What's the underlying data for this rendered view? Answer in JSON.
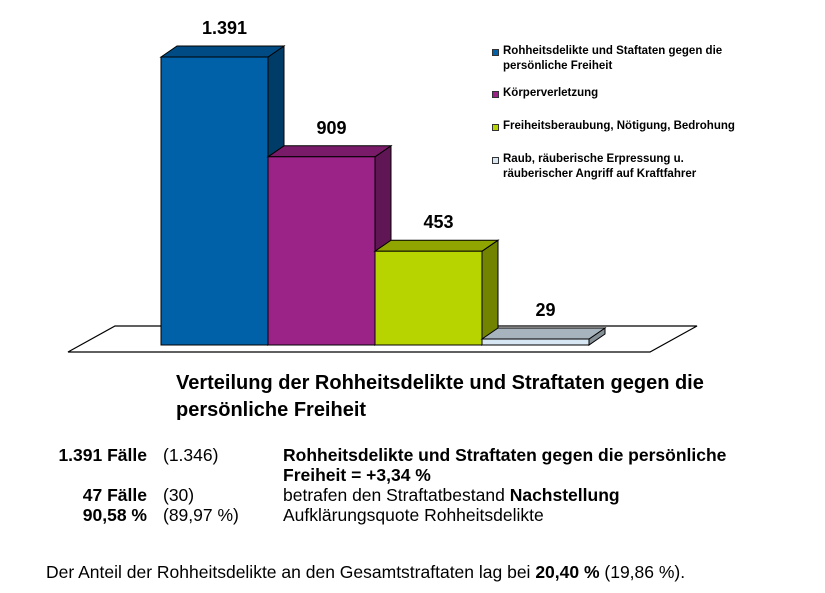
{
  "chart_data": {
    "type": "bar",
    "title": "Verteilung der Rohheitsdelikte und Straftaten gegen die persönliche Freiheit",
    "categories": [
      "Rohheitsdelikte und Staftaten gegen die persönliche Freiheit",
      "Körperverletzung",
      "Freiheitsberaubung, Nötigung, Bedrohung",
      "Raub, räuberische Erpressung u. räuberischer Angriff auf Kraftfahrer"
    ],
    "values": [
      1391,
      909,
      453,
      29
    ],
    "value_labels": [
      "1.391",
      "909",
      "453",
      "29"
    ],
    "colors": [
      "#0060A8",
      "#9B2387",
      "#B8D400",
      "#D6E6F2"
    ],
    "legend": [
      {
        "line1": "Rohheitsdelikte und Staftaten gegen die",
        "line2": "persönliche Freiheit",
        "color": "#0060A8"
      },
      {
        "line1": "Körperverletzung",
        "line2": "",
        "color": "#9B2387"
      },
      {
        "line1": "Freiheitsberaubung, Nötigung, Bedrohung",
        "line2": "",
        "color": "#B8D400"
      },
      {
        "line1": "Raub, räuberische Erpressung u.",
        "line2": "räuberischer Angriff auf Kraftfahrer",
        "color": "#D6E6F2"
      }
    ],
    "legend_position": "right",
    "style": "3d",
    "grid": false,
    "xlabel": "",
    "ylabel": ""
  },
  "title": {
    "line1": "Verteilung der Rohheitsdelikte und Straftaten gegen die",
    "line2": "persönliche Freiheit"
  },
  "stats": [
    {
      "value": "1.391 Fälle",
      "prev": "(1.346)",
      "text": "Rohheitsdelikte und Straftaten gegen die persönliche",
      "text2": "Freiheit = +3,34 %"
    },
    {
      "value": "47 Fälle",
      "prev": "(30)",
      "text": "betrafen den Straftatbestand ",
      "bold": "Nachstellung"
    },
    {
      "value": "90,58 %",
      "prev": "(89,97 %)",
      "text": "Aufklärungsquote Rohheitsdelikte"
    }
  ],
  "footer": {
    "text": "Der Anteil der Rohheitsdelikte an den Gesamtstraftaten lag bei ",
    "bold": "20,40 %",
    "rest": " (19,86 %)."
  }
}
